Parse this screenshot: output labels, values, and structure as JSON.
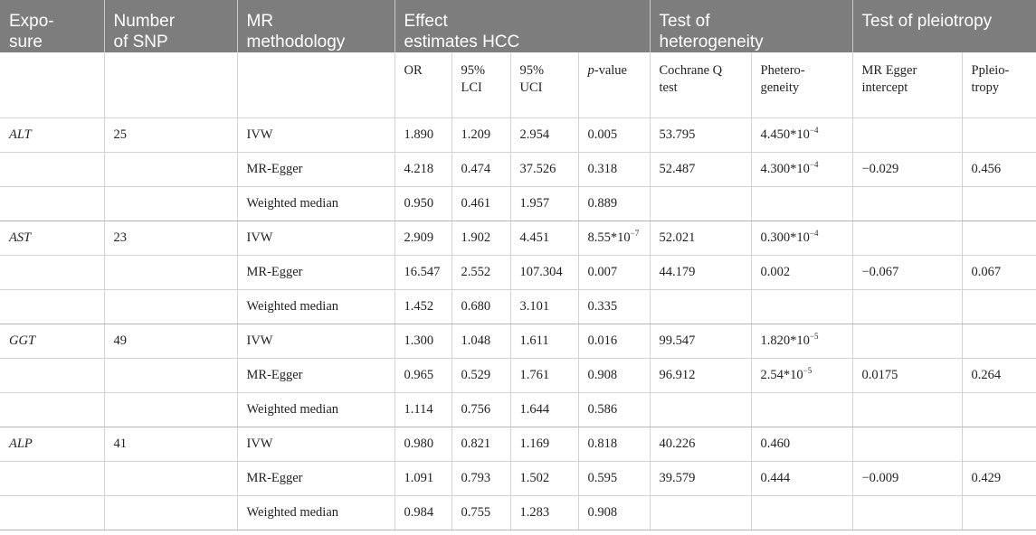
{
  "header": {
    "exposure": [
      "Expo-",
      "sure"
    ],
    "snp": [
      "Number",
      "of SNP"
    ],
    "method": [
      "MR",
      "methodology"
    ],
    "effect": [
      "Effect",
      "estimates HCC"
    ],
    "heterogeneity": [
      "Test of",
      "heterogeneity"
    ],
    "pleiotropy": "Test of pleiotropy"
  },
  "subheader": {
    "or": "OR",
    "lci": [
      "95%",
      "LCI"
    ],
    "uci": [
      "95%",
      "UCI"
    ],
    "p_italic": "p",
    "p_rest": "-value",
    "cochrane": [
      "Cochrane Q",
      "test"
    ],
    "phet": [
      "Phetero-",
      "geneity"
    ],
    "egger_intercept": [
      "MR Egger",
      "intercept"
    ],
    "pplei": [
      "Ppleio-",
      "tropy"
    ]
  },
  "rows": [
    {
      "exposure": "ALT",
      "snp": "25",
      "method": "IVW",
      "or": "1.890",
      "lci": "1.209",
      "uci": "2.954",
      "p": "0.005",
      "p_exp": "",
      "q": "53.795",
      "phet": "4.450*10",
      "phet_exp": "−4",
      "intercept": "",
      "pplei": ""
    },
    {
      "exposure": "",
      "snp": "",
      "method": "MR-Egger",
      "or": "4.218",
      "lci": "0.474",
      "uci": "37.526",
      "p": "0.318",
      "p_exp": "",
      "q": "52.487",
      "phet": "4.300*10",
      "phet_exp": "−4",
      "intercept": "−0.029",
      "pplei": "0.456"
    },
    {
      "exposure": "",
      "snp": "",
      "method": "Weighted median",
      "or": "0.950",
      "lci": "0.461",
      "uci": "1.957",
      "p": "0.889",
      "p_exp": "",
      "q": "",
      "phet": "",
      "phet_exp": "",
      "intercept": "",
      "pplei": ""
    },
    {
      "exposure": "AST",
      "snp": "23",
      "method": "IVW",
      "or": "2.909",
      "lci": "1.902",
      "uci": "4.451",
      "p": "8.55*10",
      "p_exp": "−7",
      "q": "52.021",
      "phet": "0.300*10",
      "phet_exp": "−4",
      "intercept": "",
      "pplei": ""
    },
    {
      "exposure": "",
      "snp": "",
      "method": "MR-Egger",
      "or": "16.547",
      "lci": "2.552",
      "uci": "107.304",
      "p": "0.007",
      "p_exp": "",
      "q": "44.179",
      "phet": "0.002",
      "phet_exp": "",
      "intercept": "−0.067",
      "pplei": "0.067"
    },
    {
      "exposure": "",
      "snp": "",
      "method": "Weighted median",
      "or": "1.452",
      "lci": "0.680",
      "uci": "3.101",
      "p": "0.335",
      "p_exp": "",
      "q": "",
      "phet": "",
      "phet_exp": "",
      "intercept": "",
      "pplei": ""
    },
    {
      "exposure": "GGT",
      "snp": "49",
      "method": "IVW",
      "or": "1.300",
      "lci": "1.048",
      "uci": "1.611",
      "p": "0.016",
      "p_exp": "",
      "q": "99.547",
      "phet": "1.820*10",
      "phet_exp": "−5",
      "intercept": "",
      "pplei": ""
    },
    {
      "exposure": "",
      "snp": "",
      "method": "MR-Egger",
      "or": "0.965",
      "lci": "0.529",
      "uci": "1.761",
      "p": "0.908",
      "p_exp": "",
      "q": "96.912",
      "phet": "2.54*10",
      "phet_exp": "−5",
      "intercept": "0.0175",
      "pplei": "0.264"
    },
    {
      "exposure": "",
      "snp": "",
      "method": "Weighted median",
      "or": "1.114",
      "lci": "0.756",
      "uci": "1.644",
      "p": "0.586",
      "p_exp": "",
      "q": "",
      "phet": "",
      "phet_exp": "",
      "intercept": "",
      "pplei": ""
    },
    {
      "exposure": "ALP",
      "snp": "41",
      "method": "IVW",
      "or": "0.980",
      "lci": "0.821",
      "uci": "1.169",
      "p": "0.818",
      "p_exp": "",
      "q": "40.226",
      "phet": "0.460",
      "phet_exp": "",
      "intercept": "",
      "pplei": ""
    },
    {
      "exposure": "",
      "snp": "",
      "method": "MR-Egger",
      "or": "1.091",
      "lci": "0.793",
      "uci": "1.502",
      "p": "0.595",
      "p_exp": "",
      "q": "39.579",
      "phet": "0.444",
      "phet_exp": "",
      "intercept": "−0.009",
      "pplei": "0.429"
    },
    {
      "exposure": "",
      "snp": "",
      "method": "Weighted median",
      "or": "0.984",
      "lci": "0.755",
      "uci": "1.283",
      "p": "0.908",
      "p_exp": "",
      "q": "",
      "phet": "",
      "phet_exp": "",
      "intercept": "",
      "pplei": ""
    }
  ]
}
